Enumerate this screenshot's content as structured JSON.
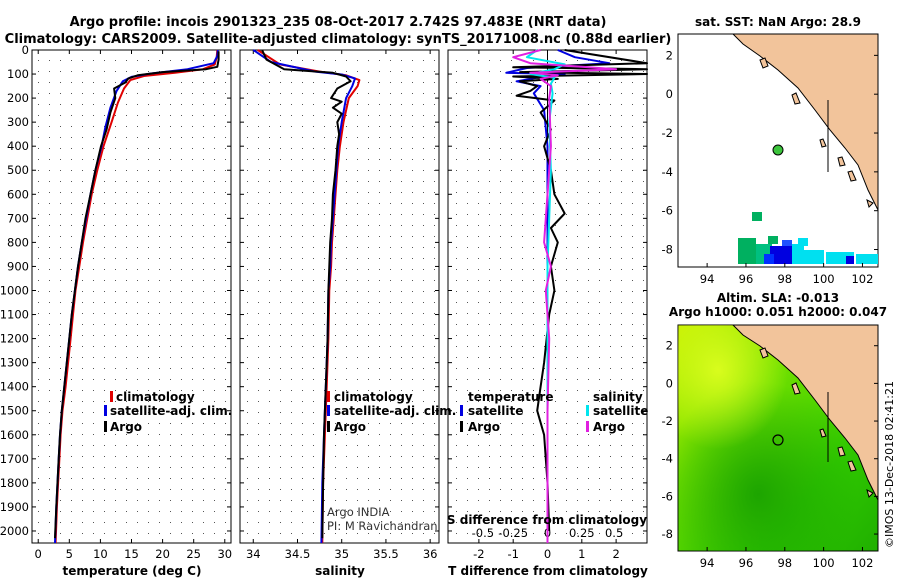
{
  "header": {
    "line1": "Argo profile: incois 2901323_235 08-Oct-2017 2.742S 97.483E (NRT data)",
    "line2": "Climatology: CARS2009. Satellite-adjusted climatology: synTS_20171008.nc (0.88d earlier)"
  },
  "colors": {
    "climatology": "#e00000",
    "satellite": "#0000e0",
    "argo": "#000000",
    "sal_satellite": "#00e5ee",
    "sal_argo": "#e020e0",
    "land": "#f2c49b",
    "sea": "#ffffff"
  },
  "depth_axis": {
    "ticks": [
      0,
      100,
      200,
      300,
      400,
      500,
      600,
      700,
      800,
      900,
      1000,
      1100,
      1200,
      1300,
      1400,
      1500,
      1600,
      1700,
      1800,
      1900,
      2000
    ],
    "max": 2050,
    "min": 0
  },
  "chart_data": [
    {
      "type": "line",
      "id": "temperature",
      "xlabel": "temperature (deg C)",
      "xlim": [
        -1,
        31
      ],
      "xticks": [
        0,
        5,
        10,
        15,
        20,
        25,
        30
      ],
      "legend": {
        "climatology": "climatology",
        "satellite": "satellite-adj. clim.",
        "argo": "Argo"
      },
      "series": [
        {
          "name": "climatology",
          "color": "#e00000",
          "points": [
            [
              28.8,
              0
            ],
            [
              28.7,
              30
            ],
            [
              28.4,
              60
            ],
            [
              26.5,
              80
            ],
            [
              22,
              95
            ],
            [
              17,
              108
            ],
            [
              14.8,
              125
            ],
            [
              13.8,
              160
            ],
            [
              12.8,
              220
            ],
            [
              11.8,
              300
            ],
            [
              10.5,
              400
            ],
            [
              9.5,
              500
            ],
            [
              8.6,
              600
            ],
            [
              7.9,
              700
            ],
            [
              7.2,
              800
            ],
            [
              6.6,
              900
            ],
            [
              6.0,
              1000
            ],
            [
              5.6,
              1100
            ],
            [
              5.2,
              1200
            ],
            [
              4.8,
              1300
            ],
            [
              4.4,
              1400
            ],
            [
              3.9,
              1500
            ],
            [
              3.6,
              1600
            ],
            [
              3.4,
              1700
            ],
            [
              3.2,
              1800
            ],
            [
              3.0,
              1900
            ],
            [
              2.8,
              2050
            ]
          ]
        },
        {
          "name": "satellite",
          "color": "#0000e0",
          "points": [
            [
              28.9,
              0
            ],
            [
              28.8,
              25
            ],
            [
              28.2,
              55
            ],
            [
              24,
              80
            ],
            [
              18,
              98
            ],
            [
              15,
              112
            ],
            [
              13.6,
              130
            ],
            [
              12.6,
              170
            ],
            [
              11.6,
              240
            ],
            [
              10.8,
              320
            ],
            [
              10.2,
              400
            ],
            [
              9.2,
              500
            ],
            [
              8.4,
              600
            ],
            [
              7.7,
              700
            ],
            [
              7.0,
              800
            ],
            [
              6.4,
              900
            ],
            [
              5.9,
              1000
            ],
            [
              5.4,
              1100
            ],
            [
              5.0,
              1200
            ],
            [
              4.6,
              1300
            ],
            [
              4.2,
              1400
            ],
            [
              3.8,
              1500
            ],
            [
              3.5,
              1600
            ],
            [
              3.3,
              1700
            ],
            [
              3.1,
              1800
            ],
            [
              2.9,
              1900
            ],
            [
              2.7,
              2050
            ]
          ]
        },
        {
          "name": "argo",
          "color": "#000000",
          "points": [
            [
              29.0,
              5
            ],
            [
              29.0,
              40
            ],
            [
              28.8,
              70
            ],
            [
              27,
              80
            ],
            [
              20,
              92
            ],
            [
              16,
              105
            ],
            [
              14.5,
              118
            ],
            [
              14.0,
              135
            ],
            [
              12.2,
              160
            ],
            [
              12.4,
              200
            ],
            [
              11.6,
              260
            ],
            [
              11.0,
              330
            ],
            [
              10.1,
              400
            ],
            [
              9.2,
              500
            ],
            [
              8.4,
              600
            ],
            [
              7.6,
              700
            ],
            [
              7.0,
              800
            ],
            [
              6.4,
              900
            ],
            [
              5.9,
              1000
            ],
            [
              5.4,
              1100
            ],
            [
              5.0,
              1200
            ],
            [
              4.6,
              1300
            ],
            [
              4.2,
              1400
            ],
            [
              3.8,
              1500
            ],
            [
              3.5,
              1600
            ],
            [
              3.3,
              1700
            ],
            [
              3.1,
              1800
            ],
            [
              2.9,
              1900
            ],
            [
              2.7,
              2030
            ]
          ]
        }
      ]
    },
    {
      "type": "line",
      "id": "salinity",
      "xlabel": "salinity",
      "xlim": [
        33.85,
        36.1
      ],
      "xticks": [
        34,
        34.5,
        35,
        35.5,
        36
      ],
      "xtick_labels": [
        "34",
        "34.5",
        "35",
        "35.5",
        "36"
      ],
      "legend": {
        "climatology": "climatology",
        "satellite": "satellite-adj. clim.",
        "argo": "Argo"
      },
      "annotation": [
        "Argo INDIA",
        "PI: M Ravichandran"
      ],
      "series": [
        {
          "name": "climatology",
          "color": "#e00000",
          "points": [
            [
              34.05,
              0
            ],
            [
              34.3,
              60
            ],
            [
              34.75,
              90
            ],
            [
              35.05,
              105
            ],
            [
              35.2,
              125
            ],
            [
              35.18,
              150
            ],
            [
              35.08,
              200
            ],
            [
              35.02,
              300
            ],
            [
              34.98,
              400
            ],
            [
              34.95,
              500
            ],
            [
              34.93,
              600
            ],
            [
              34.91,
              700
            ],
            [
              34.89,
              800
            ],
            [
              34.88,
              900
            ],
            [
              34.86,
              1000
            ],
            [
              34.85,
              1200
            ],
            [
              34.83,
              1400
            ],
            [
              34.81,
              1600
            ],
            [
              34.79,
              1800
            ],
            [
              34.78,
              2050
            ]
          ]
        },
        {
          "name": "satellite",
          "color": "#0000e0",
          "points": [
            [
              34.0,
              0
            ],
            [
              34.2,
              50
            ],
            [
              34.7,
              90
            ],
            [
              35.0,
              102
            ],
            [
              35.15,
              118
            ],
            [
              35.12,
              150
            ],
            [
              35.05,
              200
            ],
            [
              35.0,
              300
            ],
            [
              34.96,
              400
            ],
            [
              34.94,
              500
            ],
            [
              34.92,
              600
            ],
            [
              34.9,
              700
            ],
            [
              34.88,
              800
            ],
            [
              34.87,
              900
            ],
            [
              34.85,
              1000
            ],
            [
              34.84,
              1200
            ],
            [
              34.82,
              1400
            ],
            [
              34.8,
              1600
            ],
            [
              34.78,
              1800
            ],
            [
              34.77,
              2050
            ]
          ]
        },
        {
          "name": "argo",
          "color": "#000000",
          "points": [
            [
              34.1,
              0
            ],
            [
              34.15,
              40
            ],
            [
              34.35,
              80
            ],
            [
              34.9,
              95
            ],
            [
              35.05,
              110
            ],
            [
              35.1,
              130
            ],
            [
              34.95,
              160
            ],
            [
              34.88,
              200
            ],
            [
              35.0,
              215
            ],
            [
              34.9,
              240
            ],
            [
              35.0,
              265
            ],
            [
              34.95,
              300
            ],
            [
              34.97,
              350
            ],
            [
              34.95,
              400
            ],
            [
              34.93,
              500
            ],
            [
              34.9,
              600
            ],
            [
              34.89,
              700
            ],
            [
              34.87,
              800
            ],
            [
              34.86,
              900
            ],
            [
              34.85,
              1000
            ],
            [
              34.84,
              1200
            ],
            [
              34.82,
              1400
            ],
            [
              34.8,
              1600
            ],
            [
              34.79,
              1800
            ],
            [
              34.78,
              2030
            ]
          ]
        }
      ]
    },
    {
      "type": "line",
      "id": "difference",
      "xlabel": "T difference from climatology",
      "xlabel_top": "S difference from climatology",
      "xlim": [
        -2.9,
        2.9
      ],
      "xticks": [
        -2,
        -1,
        0,
        1,
        2
      ],
      "top_tick_labels": [
        "-0.5",
        "-0.25",
        "0",
        "0.25",
        "0.5"
      ],
      "legend_left": {
        "title": "temperature",
        "satellite": "satellite",
        "argo": "Argo"
      },
      "legend_right": {
        "title": "salinity",
        "satellite": "satellite",
        "argo": "Argo"
      },
      "series": [
        {
          "name": "T satellite",
          "color": "#0000e0",
          "points": [
            [
              0.3,
              0
            ],
            [
              0.8,
              30
            ],
            [
              1.8,
              55
            ],
            [
              -0.6,
              75
            ],
            [
              -1.2,
              95
            ],
            [
              0.5,
              100
            ],
            [
              -0.3,
              115
            ],
            [
              -0.9,
              130
            ],
            [
              -0.2,
              150
            ],
            [
              -0.4,
              180
            ],
            [
              -0.1,
              250
            ],
            [
              0,
              400
            ],
            [
              0,
              600
            ],
            [
              0,
              800
            ],
            [
              0,
              1000
            ],
            [
              0,
              1200
            ],
            [
              0,
              1400
            ],
            [
              0,
              1600
            ],
            [
              0,
              1800
            ],
            [
              0,
              2050
            ]
          ]
        },
        {
          "name": "T argo",
          "color": "#000000",
          "points": [
            [
              0.5,
              0
            ],
            [
              2.9,
              55
            ],
            [
              -1.0,
              72
            ],
            [
              2.9,
              80
            ],
            [
              -0.8,
              92
            ],
            [
              2.9,
              100
            ],
            [
              -1.0,
              110
            ],
            [
              0.3,
              120
            ],
            [
              -0.8,
              130
            ],
            [
              -0.3,
              150
            ],
            [
              -0.5,
              170
            ],
            [
              -0.9,
              190
            ],
            [
              0.2,
              210
            ],
            [
              -0.2,
              260
            ],
            [
              0.1,
              330
            ],
            [
              -0.1,
              400
            ],
            [
              0.1,
              500
            ],
            [
              0.2,
              600
            ],
            [
              0.5,
              680
            ],
            [
              0.1,
              740
            ],
            [
              0.3,
              800
            ],
            [
              0.1,
              900
            ],
            [
              0.2,
              1000
            ],
            [
              0.05,
              1100
            ],
            [
              -0.1,
              1300
            ],
            [
              -0.2,
              1400
            ],
            [
              -0.3,
              1500
            ],
            [
              -0.1,
              1600
            ],
            [
              0,
              1800
            ],
            [
              0.05,
              2000
            ]
          ]
        },
        {
          "name": "S satellite",
          "color": "#00e5ee",
          "points": [
            [
              -0.3,
              0
            ],
            [
              -0.6,
              30
            ],
            [
              0.5,
              60
            ],
            [
              0.2,
              80
            ],
            [
              -0.5,
              100
            ],
            [
              0.2,
              115
            ],
            [
              0.1,
              140
            ],
            [
              0.15,
              180
            ],
            [
              0.05,
              300
            ],
            [
              0.1,
              500
            ],
            [
              0.05,
              700
            ],
            [
              0,
              900
            ],
            [
              0,
              1200
            ],
            [
              0,
              1600
            ],
            [
              0,
              2050
            ]
          ]
        },
        {
          "name": "S argo",
          "color": "#e020e0",
          "points": [
            [
              -0.2,
              0
            ],
            [
              -1.0,
              30
            ],
            [
              -0.5,
              55
            ],
            [
              1.0,
              70
            ],
            [
              2.0,
              80
            ],
            [
              -0.5,
              95
            ],
            [
              0.3,
              105
            ],
            [
              -0.2,
              120
            ],
            [
              0.1,
              150
            ],
            [
              0.05,
              200
            ],
            [
              0.1,
              400
            ],
            [
              0.0,
              600
            ],
            [
              -0.1,
              800
            ],
            [
              0.1,
              900
            ],
            [
              -0.05,
              1000
            ],
            [
              0.05,
              1200
            ],
            [
              0,
              1500
            ],
            [
              0,
              2050
            ]
          ]
        }
      ]
    }
  ],
  "map_sst": {
    "title": "sat. SST: NaN Argo: 28.9",
    "xticks": [
      "94",
      "96",
      "98",
      "100",
      "102"
    ],
    "yticks": [
      "2",
      "0",
      "-2",
      "-4",
      "-6",
      "-8"
    ],
    "xlim": [
      92.5,
      102.8
    ],
    "ylim": [
      -8.9,
      3.1
    ],
    "float_location": {
      "lon": 97.48,
      "lat": -2.74,
      "color": "#3cc43c"
    }
  },
  "map_sla": {
    "title_line1": "Altim. SLA: -0.013",
    "title_line2": "Argo h1000: 0.051 h2000: 0.047",
    "xticks": [
      "94",
      "96",
      "98",
      "100",
      "102"
    ],
    "yticks": [
      "2",
      "0",
      "-2",
      "-4",
      "-6",
      "-8"
    ],
    "float_location": {
      "lon": 97.48,
      "lat": -2.74
    }
  },
  "footer": {
    "credit": "©IMOS 13-Dec-2018 02:41:21"
  }
}
